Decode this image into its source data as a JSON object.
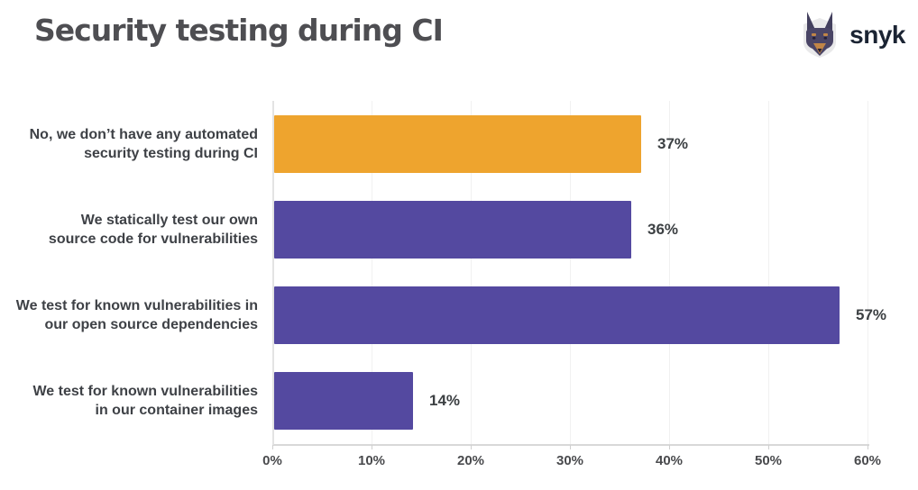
{
  "header": {
    "title": "Security testing during CI",
    "brand": "snyk"
  },
  "colors": {
    "accent_orange": "#EEA42E",
    "accent_purple": "#5449A0",
    "brand_navy": "#1B2433",
    "title_gray": "#4E4E52"
  },
  "chart_data": {
    "type": "bar",
    "orientation": "horizontal",
    "title": "Security testing during CI",
    "categories": [
      "No, we don’t have any automated\nsecurity testing during CI",
      "We statically test our own\nsource code for vulnerabilities",
      "We test for known vulnerabilities in\nour open source dependencies",
      "We test for known vulnerabilities\nin our container images"
    ],
    "values": [
      37,
      36,
      57,
      14
    ],
    "value_labels": [
      "37%",
      "36%",
      "57%",
      "14%"
    ],
    "bar_colors": [
      "#EEA42E",
      "#5449A0",
      "#5449A0",
      "#5449A0"
    ],
    "xlabel": "",
    "ylabel": "",
    "xlim": [
      0,
      60
    ],
    "x_ticks": [
      "0%",
      "10%",
      "20%",
      "30%",
      "40%",
      "50%",
      "60%"
    ],
    "grid": "vertical-light",
    "legend": "none"
  }
}
